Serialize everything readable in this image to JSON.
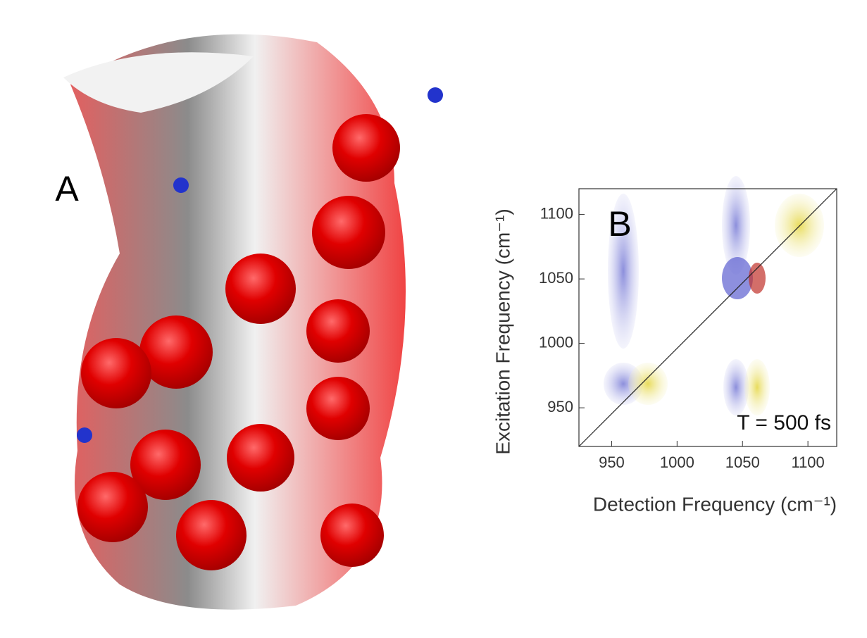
{
  "panel_labels": [
    "A",
    "B"
  ],
  "chart_data": {
    "type": "contour",
    "xlabel": "Detection Frequency (cm⁻¹)",
    "ylabel": "Excitation Frequency (cm⁻¹)",
    "annotation": "T = 500 fs",
    "xlim": [
      925,
      1122
    ],
    "ylim": [
      920,
      1120
    ],
    "xticks": [
      950,
      1000,
      1050,
      1100
    ],
    "yticks": [
      950,
      1000,
      1050,
      1100
    ]
  }
}
